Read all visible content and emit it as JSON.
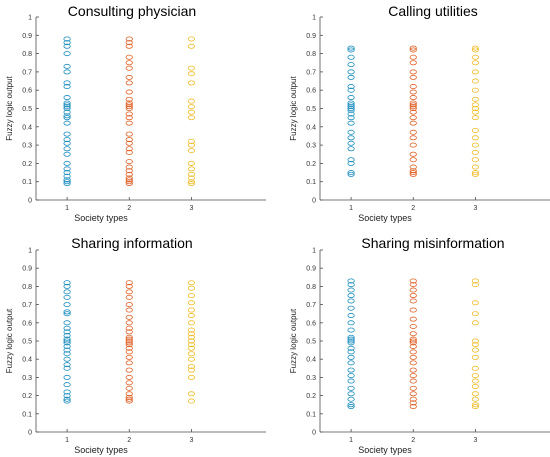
{
  "colors": {
    "society_1": "#1f8fbf",
    "society_2": "#e0642a",
    "society_3": "#f0bd2c"
  },
  "chart_data": [
    {
      "type": "scatter",
      "title": "Consulting physician",
      "xlabel": "Society types",
      "ylabel": "Fuzzy logic output",
      "xticks": [
        "1",
        "2",
        "3"
      ],
      "yticks": [
        "0",
        "0.1",
        "0.2",
        "0.3",
        "0.4",
        "0.5",
        "0.6",
        "0.7",
        "0.8",
        "0.9",
        "1"
      ],
      "xlim": [
        0.5,
        4.2
      ],
      "ylim": [
        0,
        1
      ],
      "grid": false,
      "series": [
        {
          "x": 1,
          "values": [
            0.88,
            0.86,
            0.84,
            0.8,
            0.73,
            0.7,
            0.64,
            0.62,
            0.56,
            0.53,
            0.52,
            0.51,
            0.5,
            0.48,
            0.46,
            0.45,
            0.42,
            0.36,
            0.33,
            0.31,
            0.28,
            0.25,
            0.2,
            0.17,
            0.15,
            0.13,
            0.11,
            0.1,
            0.09
          ]
        },
        {
          "x": 2,
          "values": [
            0.88,
            0.86,
            0.84,
            0.78,
            0.75,
            0.72,
            0.67,
            0.64,
            0.59,
            0.55,
            0.53,
            0.52,
            0.51,
            0.5,
            0.47,
            0.45,
            0.42,
            0.36,
            0.33,
            0.31,
            0.28,
            0.26,
            0.21,
            0.18,
            0.16,
            0.14,
            0.12,
            0.11,
            0.1,
            0.09
          ]
        },
        {
          "x": 3,
          "values": [
            0.88,
            0.84,
            0.72,
            0.69,
            0.64,
            0.54,
            0.51,
            0.48,
            0.45,
            0.32,
            0.3,
            0.27,
            0.2,
            0.17,
            0.14,
            0.12,
            0.1,
            0.09
          ]
        }
      ]
    },
    {
      "type": "scatter",
      "title": "Calling utilities",
      "xlabel": "Society types",
      "ylabel": "Fuzzy logic output",
      "xticks": [
        "1",
        "2",
        "3"
      ],
      "yticks": [
        "0",
        "0.1",
        "0.2",
        "0.3",
        "0.4",
        "0.5",
        "0.6",
        "0.7",
        "0.8",
        "0.9",
        "1"
      ],
      "xlim": [
        0.5,
        4.2
      ],
      "ylim": [
        0,
        1
      ],
      "grid": false,
      "series": [
        {
          "x": 1,
          "values": [
            0.83,
            0.82,
            0.78,
            0.74,
            0.7,
            0.67,
            0.62,
            0.6,
            0.56,
            0.53,
            0.52,
            0.51,
            0.5,
            0.49,
            0.47,
            0.45,
            0.42,
            0.37,
            0.34,
            0.31,
            0.28,
            0.22,
            0.2,
            0.15,
            0.14
          ]
        },
        {
          "x": 2,
          "values": [
            0.83,
            0.82,
            0.78,
            0.75,
            0.7,
            0.67,
            0.62,
            0.59,
            0.56,
            0.53,
            0.52,
            0.51,
            0.5,
            0.48,
            0.45,
            0.42,
            0.37,
            0.34,
            0.3,
            0.25,
            0.22,
            0.18,
            0.16,
            0.15,
            0.14
          ]
        },
        {
          "x": 3,
          "values": [
            0.83,
            0.82,
            0.78,
            0.75,
            0.7,
            0.65,
            0.6,
            0.55,
            0.52,
            0.5,
            0.48,
            0.45,
            0.38,
            0.34,
            0.3,
            0.26,
            0.22,
            0.18,
            0.15,
            0.14
          ]
        }
      ]
    },
    {
      "type": "scatter",
      "title": "Sharing information",
      "xlabel": "Society types",
      "ylabel": "Fuzzy logic output",
      "xticks": [
        "1",
        "2",
        "3"
      ],
      "yticks": [
        "0",
        "0.1",
        "0.2",
        "0.3",
        "0.4",
        "0.5",
        "0.6",
        "0.7",
        "0.8",
        "0.9",
        "1"
      ],
      "xlim": [
        0.5,
        4.2
      ],
      "ylim": [
        0,
        1
      ],
      "grid": false,
      "series": [
        {
          "x": 1,
          "values": [
            0.82,
            0.8,
            0.77,
            0.74,
            0.7,
            0.66,
            0.65,
            0.6,
            0.57,
            0.55,
            0.53,
            0.51,
            0.5,
            0.49,
            0.47,
            0.45,
            0.43,
            0.4,
            0.37,
            0.35,
            0.3,
            0.26,
            0.22,
            0.2,
            0.18,
            0.17
          ]
        },
        {
          "x": 2,
          "values": [
            0.82,
            0.8,
            0.77,
            0.74,
            0.7,
            0.67,
            0.63,
            0.6,
            0.57,
            0.55,
            0.52,
            0.51,
            0.5,
            0.49,
            0.48,
            0.46,
            0.44,
            0.41,
            0.38,
            0.34,
            0.3,
            0.27,
            0.24,
            0.21,
            0.19,
            0.18,
            0.17
          ]
        },
        {
          "x": 3,
          "values": [
            0.82,
            0.79,
            0.75,
            0.71,
            0.67,
            0.64,
            0.6,
            0.56,
            0.54,
            0.52,
            0.5,
            0.48,
            0.46,
            0.43,
            0.4,
            0.36,
            0.34,
            0.3,
            0.21,
            0.17
          ]
        }
      ]
    },
    {
      "type": "scatter",
      "title": "Sharing misinformation",
      "xlabel": "Society types",
      "ylabel": "Fuzzy logic output",
      "xticks": [
        "1",
        "2",
        "3"
      ],
      "yticks": [
        "0",
        "0.1",
        "0.2",
        "0.3",
        "0.4",
        "0.5",
        "0.6",
        "0.7",
        "0.8",
        "0.9",
        "1"
      ],
      "xlim": [
        0.5,
        4.2
      ],
      "ylim": [
        0,
        1
      ],
      "grid": false,
      "series": [
        {
          "x": 1,
          "values": [
            0.83,
            0.81,
            0.78,
            0.75,
            0.72,
            0.68,
            0.64,
            0.6,
            0.56,
            0.52,
            0.51,
            0.5,
            0.49,
            0.46,
            0.44,
            0.41,
            0.38,
            0.34,
            0.31,
            0.28,
            0.24,
            0.21,
            0.18,
            0.15,
            0.14
          ]
        },
        {
          "x": 2,
          "values": [
            0.83,
            0.81,
            0.78,
            0.75,
            0.72,
            0.67,
            0.62,
            0.58,
            0.54,
            0.51,
            0.5,
            0.49,
            0.47,
            0.44,
            0.41,
            0.38,
            0.34,
            0.31,
            0.28,
            0.24,
            0.21,
            0.18,
            0.16,
            0.14
          ]
        },
        {
          "x": 3,
          "values": [
            0.83,
            0.81,
            0.71,
            0.65,
            0.6,
            0.5,
            0.48,
            0.45,
            0.41,
            0.35,
            0.31,
            0.28,
            0.25,
            0.21,
            0.18,
            0.15,
            0.14
          ]
        }
      ]
    }
  ]
}
